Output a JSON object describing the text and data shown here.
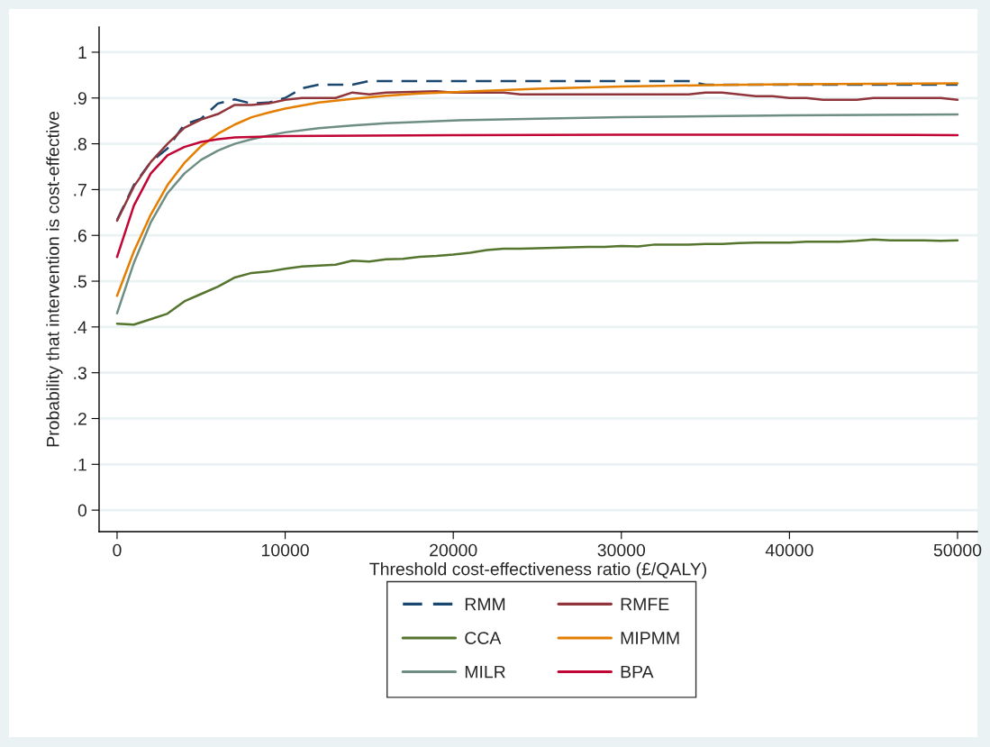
{
  "chart_data": {
    "type": "line",
    "xlabel": "Threshold cost-effectiveness ratio (£/QALY)",
    "ylabel": "Probability that intervention is cost-effective",
    "xlim": [
      -1070,
      51180
    ],
    "xticks": [
      0,
      10000,
      20000,
      30000,
      40000,
      50000
    ],
    "ylim": [
      -0.047,
      1.055
    ],
    "yticks": [
      {
        "value": 0,
        "label": "0"
      },
      {
        "value": 0.1,
        "label": ".1"
      },
      {
        "value": 0.2,
        "label": ".2"
      },
      {
        "value": 0.3,
        "label": ".3"
      },
      {
        "value": 0.4,
        "label": ".4"
      },
      {
        "value": 0.5,
        "label": ".5"
      },
      {
        "value": 0.6,
        "label": ".6"
      },
      {
        "value": 0.7,
        "label": ".7"
      },
      {
        "value": 0.8,
        "label": ".8"
      },
      {
        "value": 0.9,
        "label": ".9"
      },
      {
        "value": 1,
        "label": "1"
      }
    ],
    "grid": "y",
    "legend": "bottom",
    "marker": "none",
    "series": [
      {
        "name": "RMM",
        "color": "#1a476f",
        "line_style": "dashed",
        "x": [
          0,
          1000,
          2000,
          3000,
          4000,
          5000,
          6000,
          7000,
          8000,
          9000,
          10000,
          11000,
          12000,
          13000,
          14000,
          15000,
          20000,
          25000,
          30000,
          34000,
          35000,
          40000,
          45000,
          50000
        ],
        "values": [
          0.634,
          0.71,
          0.76,
          0.79,
          0.842,
          0.855,
          0.888,
          0.897,
          0.888,
          0.89,
          0.9,
          0.921,
          0.929,
          0.929,
          0.929,
          0.937,
          0.937,
          0.937,
          0.937,
          0.937,
          0.929,
          0.929,
          0.929,
          0.929
        ]
      },
      {
        "name": "RMFE",
        "color": "#90353b",
        "line_style": "solid",
        "x": [
          0,
          1000,
          2000,
          3000,
          4000,
          5000,
          6000,
          7000,
          8000,
          9000,
          10000,
          11000,
          12000,
          13000,
          14000,
          15000,
          16000,
          19000,
          20000,
          23000,
          24000,
          34000,
          35000,
          36000,
          37000,
          38000,
          39000,
          40000,
          41000,
          42000,
          43000,
          44000,
          45000,
          49000,
          50000
        ],
        "values": [
          0.632,
          0.707,
          0.76,
          0.8,
          0.835,
          0.853,
          0.865,
          0.885,
          0.885,
          0.888,
          0.896,
          0.9,
          0.9,
          0.9,
          0.912,
          0.908,
          0.912,
          0.915,
          0.912,
          0.912,
          0.908,
          0.908,
          0.912,
          0.912,
          0.908,
          0.904,
          0.904,
          0.9,
          0.9,
          0.896,
          0.896,
          0.896,
          0.9,
          0.9,
          0.896
        ]
      },
      {
        "name": "CCA",
        "color": "#55752f",
        "line_style": "solid",
        "x": [
          0,
          1000,
          2000,
          3000,
          4000,
          5000,
          6000,
          7000,
          8000,
          9000,
          10000,
          11000,
          12000,
          13000,
          14000,
          15000,
          16000,
          17000,
          18000,
          19000,
          20000,
          21000,
          22000,
          23000,
          24000,
          25000,
          26000,
          27000,
          28000,
          29000,
          30000,
          31000,
          32000,
          33000,
          34000,
          35000,
          36000,
          37000,
          38000,
          39000,
          40000,
          41000,
          42000,
          43000,
          44000,
          45000,
          46000,
          47000,
          48000,
          49000,
          50000
        ],
        "values": [
          0.407,
          0.405,
          0.417,
          0.429,
          0.456,
          0.472,
          0.488,
          0.508,
          0.518,
          0.521,
          0.527,
          0.532,
          0.534,
          0.536,
          0.545,
          0.543,
          0.548,
          0.549,
          0.553,
          0.555,
          0.558,
          0.562,
          0.568,
          0.571,
          0.571,
          0.572,
          0.573,
          0.574,
          0.575,
          0.575,
          0.577,
          0.576,
          0.58,
          0.58,
          0.58,
          0.581,
          0.581,
          0.583,
          0.584,
          0.584,
          0.584,
          0.586,
          0.586,
          0.586,
          0.588,
          0.591,
          0.589,
          0.589,
          0.589,
          0.588,
          0.589
        ]
      },
      {
        "name": "MIPMM",
        "color": "#e37e00",
        "line_style": "solid",
        "x": [
          0,
          1000,
          2000,
          3000,
          4000,
          5000,
          6000,
          7000,
          8000,
          9000,
          10000,
          12000,
          14000,
          16000,
          18000,
          20000,
          25000,
          30000,
          35000,
          40000,
          45000,
          50000
        ],
        "values": [
          0.468,
          0.565,
          0.645,
          0.71,
          0.758,
          0.795,
          0.822,
          0.842,
          0.858,
          0.868,
          0.877,
          0.89,
          0.898,
          0.905,
          0.91,
          0.913,
          0.92,
          0.925,
          0.928,
          0.93,
          0.931,
          0.932
        ]
      },
      {
        "name": "MILR",
        "color": "#6e8e84",
        "line_style": "solid",
        "x": [
          0,
          1000,
          2000,
          3000,
          4000,
          5000,
          6000,
          7000,
          8000,
          9000,
          10000,
          12000,
          14000,
          16000,
          18000,
          20000,
          25000,
          30000,
          35000,
          40000,
          45000,
          50000
        ],
        "values": [
          0.43,
          0.54,
          0.628,
          0.692,
          0.735,
          0.765,
          0.785,
          0.8,
          0.81,
          0.818,
          0.825,
          0.834,
          0.84,
          0.845,
          0.848,
          0.851,
          0.855,
          0.858,
          0.86,
          0.862,
          0.863,
          0.864
        ]
      },
      {
        "name": "BPA",
        "color": "#c10534",
        "line_style": "solid",
        "x": [
          0,
          1000,
          2000,
          3000,
          4000,
          5000,
          6000,
          7000,
          8000,
          10000,
          15000,
          20000,
          30000,
          40000,
          50000
        ],
        "values": [
          0.553,
          0.665,
          0.735,
          0.775,
          0.793,
          0.804,
          0.81,
          0.814,
          0.815,
          0.817,
          0.818,
          0.819,
          0.82,
          0.82,
          0.819
        ]
      }
    ]
  }
}
